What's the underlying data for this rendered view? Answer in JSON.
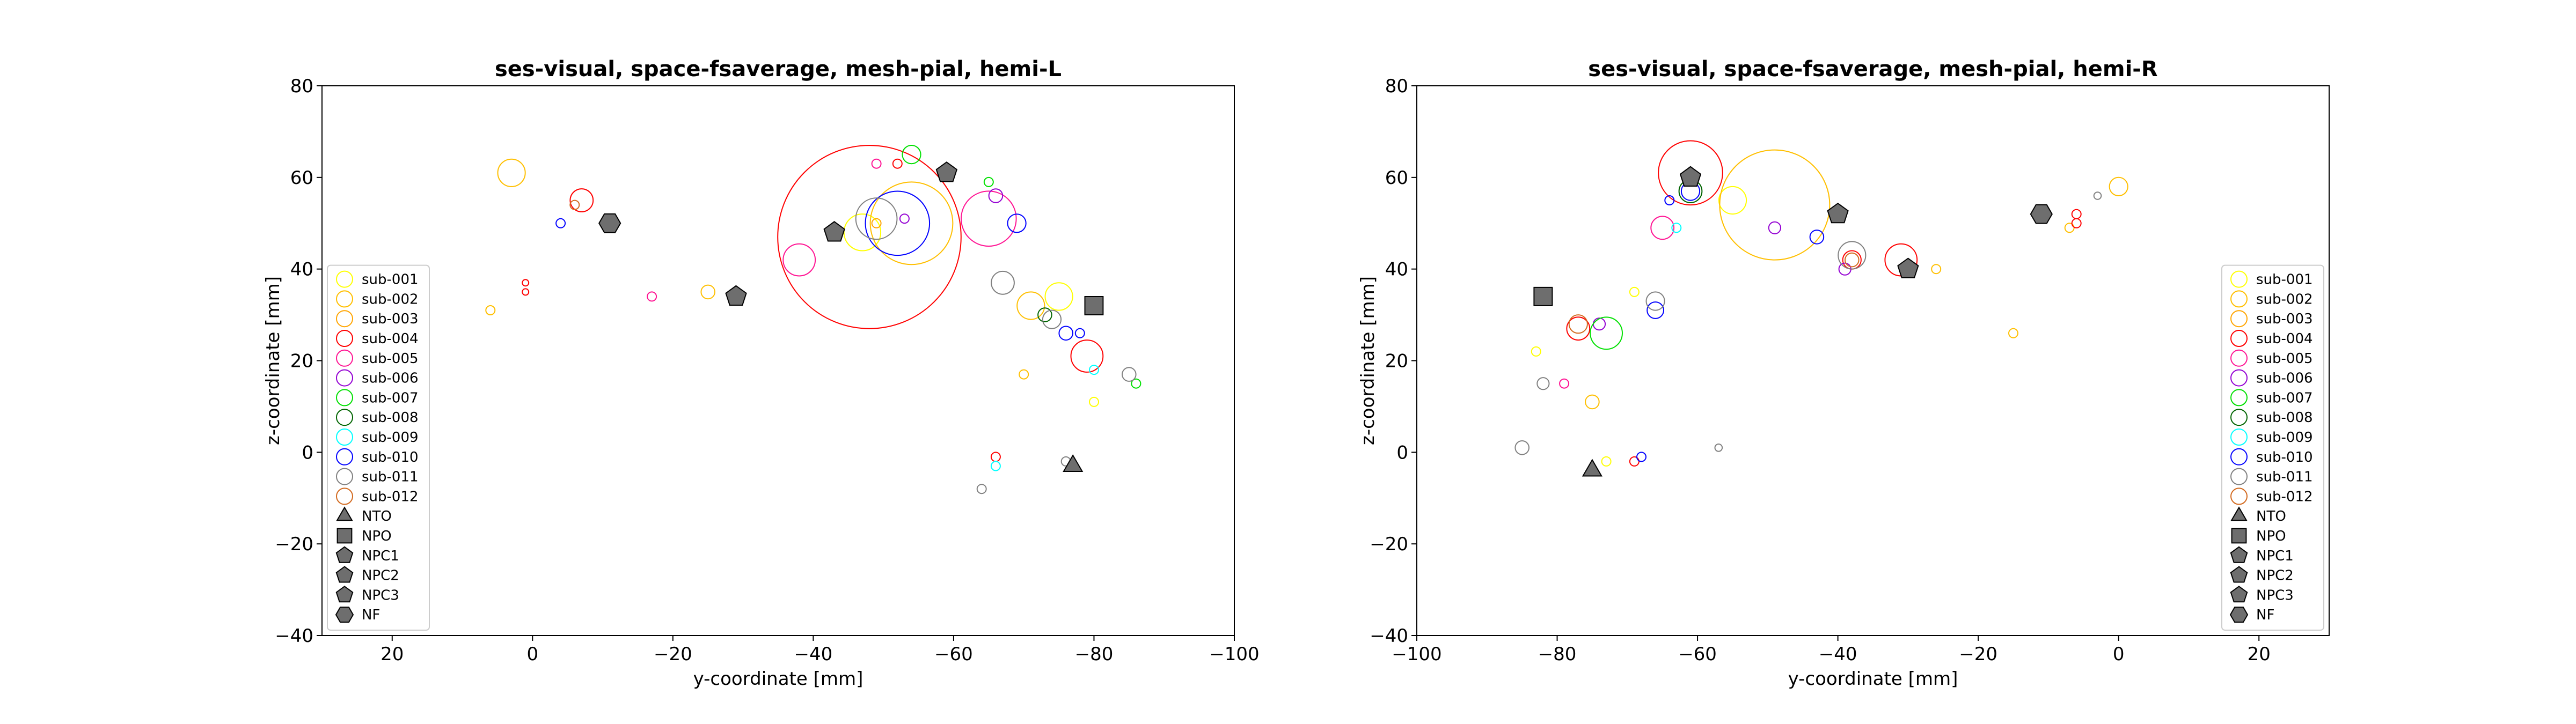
{
  "chart_data": [
    {
      "type": "scatter",
      "title": "ses-visual, space-fsaverage, mesh-pial, hemi-L",
      "xlabel": "y-coordinate [mm]",
      "ylabel": "z-coordinate [mm]",
      "xlim": [
        30,
        -100
      ],
      "ylim": [
        -40,
        80
      ],
      "xticks": [
        "20",
        "0",
        "−20",
        "−40",
        "−60",
        "−80",
        "−100"
      ],
      "xtick_values": [
        20,
        0,
        -20,
        -40,
        -60,
        -80,
        -100
      ],
      "yticks": [
        "−40",
        "−20",
        "0",
        "20",
        "40",
        "60",
        "80"
      ],
      "ytick_values": [
        -40,
        -20,
        0,
        20,
        40,
        60,
        80
      ],
      "grid": false,
      "legend_position": "lower-left",
      "points": [
        {
          "s": "sub-001",
          "x": -47,
          "y": 48,
          "r": 4
        },
        {
          "s": "sub-001",
          "x": -75,
          "y": 34,
          "r": 3
        },
        {
          "s": "sub-001",
          "x": -80,
          "y": 11,
          "r": 1
        },
        {
          "s": "sub-002",
          "x": -54,
          "y": 50,
          "r": 9
        },
        {
          "s": "sub-002",
          "x": -71,
          "y": 32,
          "r": 3
        },
        {
          "s": "sub-002",
          "x": 3,
          "y": 61,
          "r": 3
        },
        {
          "s": "sub-002",
          "x": -25,
          "y": 35,
          "r": 1.5
        },
        {
          "s": "sub-002",
          "x": 6,
          "y": 31,
          "r": 1
        },
        {
          "s": "sub-002",
          "x": -70,
          "y": 17,
          "r": 1
        },
        {
          "s": "sub-003",
          "x": -49,
          "y": 50,
          "r": 1
        },
        {
          "s": "sub-004",
          "x": -48,
          "y": 47,
          "r": 20
        },
        {
          "s": "sub-004",
          "x": -79,
          "y": 21,
          "r": 3.5
        },
        {
          "s": "sub-004",
          "x": -7,
          "y": 55,
          "r": 2.5
        },
        {
          "s": "sub-004",
          "x": -52,
          "y": 63,
          "r": 1
        },
        {
          "s": "sub-004",
          "x": -66,
          "y": -1,
          "r": 1
        },
        {
          "s": "sub-004",
          "x": 1,
          "y": 37,
          "r": 0.7
        },
        {
          "s": "sub-004",
          "x": 1,
          "y": 35,
          "r": 0.7
        },
        {
          "s": "sub-005",
          "x": -65,
          "y": 51,
          "r": 6
        },
        {
          "s": "sub-005",
          "x": -38,
          "y": 42,
          "r": 3.5
        },
        {
          "s": "sub-005",
          "x": -17,
          "y": 34,
          "r": 1
        },
        {
          "s": "sub-005",
          "x": -49,
          "y": 63,
          "r": 1
        },
        {
          "s": "sub-006",
          "x": -66,
          "y": 56,
          "r": 1.5
        },
        {
          "s": "sub-006",
          "x": -53,
          "y": 51,
          "r": 1
        },
        {
          "s": "sub-007",
          "x": -54,
          "y": 65,
          "r": 2
        },
        {
          "s": "sub-007",
          "x": -65,
          "y": 59,
          "r": 1
        },
        {
          "s": "sub-007",
          "x": -86,
          "y": 15,
          "r": 1
        },
        {
          "s": "sub-008",
          "x": -73,
          "y": 30,
          "r": 1.5
        },
        {
          "s": "sub-009",
          "x": -66,
          "y": -3,
          "r": 1
        },
        {
          "s": "sub-009",
          "x": -80,
          "y": 18,
          "r": 1
        },
        {
          "s": "sub-010",
          "x": -52,
          "y": 50,
          "r": 7
        },
        {
          "s": "sub-010",
          "x": -69,
          "y": 50,
          "r": 2
        },
        {
          "s": "sub-010",
          "x": -76,
          "y": 26,
          "r": 1.5
        },
        {
          "s": "sub-010",
          "x": -4,
          "y": 50,
          "r": 1
        },
        {
          "s": "sub-010",
          "x": -78,
          "y": 26,
          "r": 1
        },
        {
          "s": "sub-011",
          "x": -49,
          "y": 51,
          "r": 4.5
        },
        {
          "s": "sub-011",
          "x": -67,
          "y": 37,
          "r": 2.5
        },
        {
          "s": "sub-011",
          "x": -74,
          "y": 29,
          "r": 2
        },
        {
          "s": "sub-011",
          "x": -85,
          "y": 17,
          "r": 1.5
        },
        {
          "s": "sub-011",
          "x": -64,
          "y": -8,
          "r": 1
        },
        {
          "s": "sub-011",
          "x": -76,
          "y": -2,
          "r": 1
        },
        {
          "s": "sub-012",
          "x": -6,
          "y": 54,
          "r": 1
        }
      ],
      "markers": [
        {
          "label": "NTO",
          "shape": "triangle",
          "x": -77,
          "y": -3
        },
        {
          "label": "NPO",
          "shape": "square",
          "x": -80,
          "y": 32
        },
        {
          "label": "NPC1",
          "shape": "pentagon",
          "x": -43,
          "y": 48
        },
        {
          "label": "NPC2",
          "shape": "pentagon",
          "x": -59,
          "y": 61
        },
        {
          "label": "NPC3",
          "shape": "pentagon",
          "x": -29,
          "y": 34
        },
        {
          "label": "NF",
          "shape": "hexagon",
          "x": -11,
          "y": 50
        }
      ]
    },
    {
      "type": "scatter",
      "title": "ses-visual, space-fsaverage, mesh-pial, hemi-R",
      "xlabel": "y-coordinate [mm]",
      "ylabel": "z-coordinate [mm]",
      "xlim": [
        -100,
        30
      ],
      "ylim": [
        -40,
        80
      ],
      "xticks": [
        "−100",
        "−80",
        "−60",
        "−40",
        "−20",
        "0",
        "20"
      ],
      "xtick_values": [
        -100,
        -80,
        -60,
        -40,
        -20,
        0,
        20
      ],
      "yticks": [
        "−40",
        "−20",
        "0",
        "20",
        "40",
        "60",
        "80"
      ],
      "ytick_values": [
        -40,
        -20,
        0,
        20,
        40,
        60,
        80
      ],
      "grid": false,
      "legend_position": "lower-right",
      "points": [
        {
          "s": "sub-001",
          "x": -55,
          "y": 55,
          "r": 3
        },
        {
          "s": "sub-001",
          "x": -83,
          "y": 22,
          "r": 1
        },
        {
          "s": "sub-001",
          "x": -69,
          "y": 35,
          "r": 1
        },
        {
          "s": "sub-001",
          "x": -73,
          "y": -2,
          "r": 1
        },
        {
          "s": "sub-002",
          "x": -49,
          "y": 54,
          "r": 12
        },
        {
          "s": "sub-002",
          "x": 0,
          "y": 58,
          "r": 2
        },
        {
          "s": "sub-002",
          "x": -75,
          "y": 11,
          "r": 1.5
        },
        {
          "s": "sub-002",
          "x": -26,
          "y": 40,
          "r": 1
        },
        {
          "s": "sub-002",
          "x": -15,
          "y": 26,
          "r": 1
        },
        {
          "s": "sub-002",
          "x": -7,
          "y": 49,
          "r": 1
        },
        {
          "s": "sub-004",
          "x": -61,
          "y": 61,
          "r": 7
        },
        {
          "s": "sub-004",
          "x": -31,
          "y": 42,
          "r": 3.5
        },
        {
          "s": "sub-004",
          "x": -77,
          "y": 27,
          "r": 2.5
        },
        {
          "s": "sub-004",
          "x": -38,
          "y": 42,
          "r": 2
        },
        {
          "s": "sub-004",
          "x": -69,
          "y": -2,
          "r": 1
        },
        {
          "s": "sub-004",
          "x": -6,
          "y": 52,
          "r": 1
        },
        {
          "s": "sub-004",
          "x": -6,
          "y": 50,
          "r": 1
        },
        {
          "s": "sub-005",
          "x": -65,
          "y": 49,
          "r": 2.5
        },
        {
          "s": "sub-005",
          "x": -79,
          "y": 15,
          "r": 1
        },
        {
          "s": "sub-006",
          "x": -49,
          "y": 49,
          "r": 1.3
        },
        {
          "s": "sub-006",
          "x": -39,
          "y": 40,
          "r": 1.3
        },
        {
          "s": "sub-006",
          "x": -74,
          "y": 28,
          "r": 1.3
        },
        {
          "s": "sub-007",
          "x": -73,
          "y": 26,
          "r": 3.5
        },
        {
          "s": "sub-008",
          "x": -61,
          "y": 57,
          "r": 2.5
        },
        {
          "s": "sub-009",
          "x": -63,
          "y": 49,
          "r": 1
        },
        {
          "s": "sub-010",
          "x": -61,
          "y": 57,
          "r": 2
        },
        {
          "s": "sub-010",
          "x": -43,
          "y": 47,
          "r": 1.5
        },
        {
          "s": "sub-010",
          "x": -66,
          "y": 31,
          "r": 1.8
        },
        {
          "s": "sub-010",
          "x": -64,
          "y": 55,
          "r": 1
        },
        {
          "s": "sub-010",
          "x": -68,
          "y": -1,
          "r": 1
        },
        {
          "s": "sub-011",
          "x": -38,
          "y": 43,
          "r": 3
        },
        {
          "s": "sub-011",
          "x": -66,
          "y": 33,
          "r": 2
        },
        {
          "s": "sub-011",
          "x": -85,
          "y": 1,
          "r": 1.5
        },
        {
          "s": "sub-011",
          "x": -82,
          "y": 15,
          "r": 1.3
        },
        {
          "s": "sub-011",
          "x": -57,
          "y": 1,
          "r": 0.8
        },
        {
          "s": "sub-011",
          "x": -3,
          "y": 56,
          "r": 0.8
        },
        {
          "s": "sub-012",
          "x": -77,
          "y": 28,
          "r": 2
        },
        {
          "s": "sub-012",
          "x": -38,
          "y": 42,
          "r": 1.5
        }
      ],
      "markers": [
        {
          "label": "NTO",
          "shape": "triangle",
          "x": -75,
          "y": -4
        },
        {
          "label": "NPO",
          "shape": "square",
          "x": -82,
          "y": 34
        },
        {
          "label": "NPC1",
          "shape": "pentagon",
          "x": -40,
          "y": 52
        },
        {
          "label": "NPC2",
          "shape": "pentagon",
          "x": -61,
          "y": 60
        },
        {
          "label": "NPC3",
          "shape": "pentagon",
          "x": -30,
          "y": 40
        },
        {
          "label": "NF",
          "shape": "hexagon",
          "x": -11,
          "y": 52
        }
      ]
    }
  ],
  "legend": {
    "subjects": [
      {
        "label": "sub-001",
        "color": "#ffff00"
      },
      {
        "label": "sub-002",
        "color": "#ffbf00"
      },
      {
        "label": "sub-003",
        "color": "#ffa500"
      },
      {
        "label": "sub-004",
        "color": "#ff0000"
      },
      {
        "label": "sub-005",
        "color": "#ff1493"
      },
      {
        "label": "sub-006",
        "color": "#9400d3"
      },
      {
        "label": "sub-007",
        "color": "#00e000"
      },
      {
        "label": "sub-008",
        "color": "#006400"
      },
      {
        "label": "sub-009",
        "color": "#00ffff"
      },
      {
        "label": "sub-010",
        "color": "#0000ff"
      },
      {
        "label": "sub-011",
        "color": "#808080"
      },
      {
        "label": "sub-012",
        "color": "#d2691e"
      }
    ],
    "markers": [
      {
        "label": "NTO",
        "shape": "triangle"
      },
      {
        "label": "NPO",
        "shape": "square"
      },
      {
        "label": "NPC1",
        "shape": "pentagon"
      },
      {
        "label": "NPC2",
        "shape": "pentagon"
      },
      {
        "label": "NPC3",
        "shape": "pentagon"
      },
      {
        "label": "NF",
        "shape": "hexagon"
      }
    ],
    "marker_fill": "#6e6e6e"
  }
}
